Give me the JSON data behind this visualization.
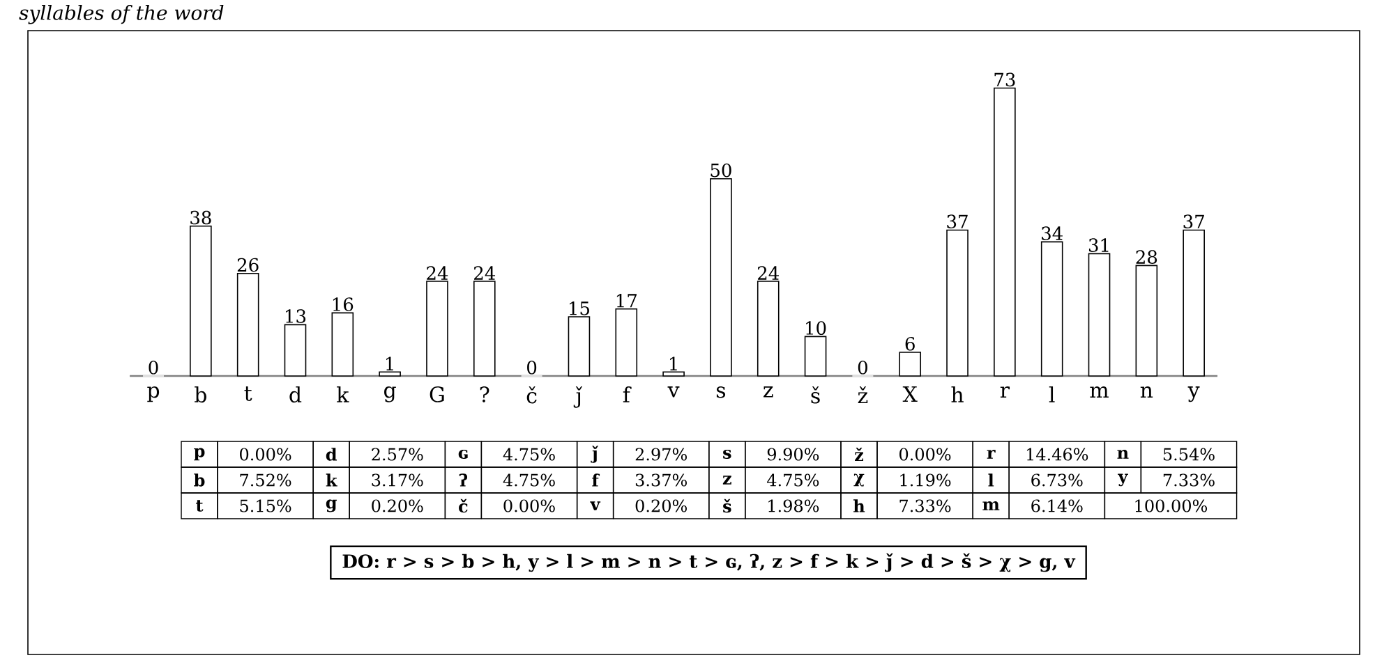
{
  "chart_data": {
    "type": "bar",
    "title": "syllables of the word",
    "categories": [
      "p",
      "b",
      "t",
      "d",
      "k",
      "g",
      "G",
      "?",
      "č",
      "ǰ",
      "f",
      "v",
      "s",
      "z",
      "š",
      "ž",
      "X",
      "h",
      "r",
      "l",
      "m",
      "n",
      "y"
    ],
    "values": [
      0,
      38,
      26,
      13,
      16,
      1,
      24,
      24,
      0,
      15,
      17,
      1,
      50,
      24,
      10,
      0,
      6,
      37,
      73,
      34,
      31,
      28,
      37
    ],
    "color": "#ffffff",
    "data_labels": true,
    "annotations": [
      "p",
      "0.00%",
      "d",
      "2.57%",
      "ɢ",
      "4.75%",
      "ǰ",
      "2.97%",
      "s",
      "9.90%",
      "ž",
      "0.00%",
      "r",
      "14.46%",
      "n",
      "5.54%",
      "b",
      "7.52%",
      "k",
      "3.17%",
      "ʔ",
      "4.75%",
      "f",
      "3.37%",
      "z",
      "4.75%",
      "χ",
      "1.19%",
      "l",
      "6.73%",
      "y",
      "7.33%",
      "t",
      "5.15%",
      "g",
      "0.20%",
      "č",
      "0.00%",
      "v",
      "0.20%",
      "š",
      "1.98%",
      "h",
      "7.33%",
      "m",
      "6.14%",
      "100.00%",
      "DO: r > s > b > h, y > l > m > n > t > ɢ, ʔ, z > f > k > ǰ > d > š > χ > g, v"
    ]
  }
}
